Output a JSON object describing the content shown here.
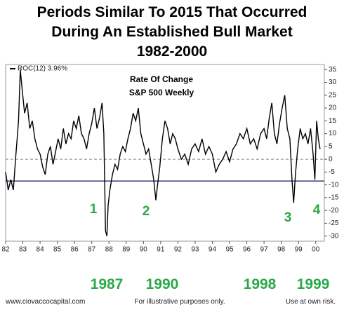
{
  "chart_data": {
    "type": "line",
    "title": [
      "Periods Similar To 2015 That Occurred",
      "During An Established Bull Market",
      "1982-2000"
    ],
    "box_text": [
      "Rate Of Change",
      "S&P 500 Weekly"
    ],
    "series": [
      {
        "name": "ROC(12) 3.96%",
        "color": "#000000",
        "x": [
          1982.0,
          1982.15,
          1982.3,
          1982.45,
          1982.6,
          1982.75,
          1982.85,
          1982.95,
          1983.1,
          1983.25,
          1983.4,
          1983.55,
          1983.7,
          1983.85,
          1984.0,
          1984.15,
          1984.3,
          1984.45,
          1984.6,
          1984.75,
          1984.9,
          1985.05,
          1985.2,
          1985.35,
          1985.5,
          1985.65,
          1985.8,
          1985.95,
          1986.1,
          1986.25,
          1986.4,
          1986.55,
          1986.7,
          1986.85,
          1987.0,
          1987.15,
          1987.3,
          1987.45,
          1987.6,
          1987.7,
          1987.8,
          1987.88,
          1987.95,
          1988.05,
          1988.2,
          1988.35,
          1988.5,
          1988.65,
          1988.8,
          1988.95,
          1989.1,
          1989.25,
          1989.4,
          1989.55,
          1989.7,
          1989.85,
          1990.0,
          1990.15,
          1990.3,
          1990.45,
          1990.6,
          1990.72,
          1990.82,
          1990.95,
          1991.1,
          1991.25,
          1991.4,
          1991.55,
          1991.7,
          1991.85,
          1992.0,
          1992.2,
          1992.4,
          1992.6,
          1992.8,
          1993.0,
          1993.2,
          1993.4,
          1993.6,
          1993.8,
          1994.0,
          1994.2,
          1994.4,
          1994.6,
          1994.8,
          1995.0,
          1995.2,
          1995.4,
          1995.6,
          1995.8,
          1996.0,
          1996.2,
          1996.4,
          1996.6,
          1996.8,
          1997.0,
          1997.15,
          1997.3,
          1997.45,
          1997.6,
          1997.75,
          1997.9,
          1998.05,
          1998.2,
          1998.35,
          1998.5,
          1998.62,
          1998.72,
          1998.82,
          1998.95,
          1999.1,
          1999.25,
          1999.4,
          1999.55,
          1999.7,
          1999.85,
          1999.95,
          2000.05,
          2000.15,
          2000.25
        ],
        "values": [
          -5,
          -12,
          -8,
          -12,
          2,
          15,
          35,
          28,
          18,
          22,
          12,
          15,
          8,
          4,
          2,
          -3,
          -6,
          2,
          5,
          -2,
          3,
          8,
          4,
          12,
          6,
          10,
          8,
          15,
          12,
          17,
          10,
          8,
          4,
          10,
          14,
          20,
          12,
          16,
          22,
          10,
          -28,
          -30,
          -18,
          -12,
          -6,
          -2,
          -4,
          2,
          5,
          3,
          8,
          12,
          18,
          15,
          20,
          10,
          6,
          2,
          4,
          -2,
          -8,
          -16,
          -10,
          -3,
          8,
          15,
          12,
          6,
          10,
          8,
          4,
          0,
          2,
          -2,
          4,
          6,
          3,
          8,
          2,
          5,
          2,
          -5,
          -2,
          0,
          3,
          -1,
          4,
          6,
          10,
          8,
          12,
          6,
          8,
          4,
          10,
          12,
          8,
          16,
          22,
          10,
          6,
          14,
          20,
          25,
          12,
          8,
          -8,
          -17,
          -6,
          4,
          12,
          8,
          10,
          6,
          12,
          2,
          -8,
          15,
          8,
          4
        ]
      }
    ],
    "xlim": [
      1982,
      2000.5
    ],
    "ylim": [
      -32,
      37
    ],
    "xticks": [
      {
        "value": 1982,
        "label": "82"
      },
      {
        "value": 1983,
        "label": "83"
      },
      {
        "value": 1984,
        "label": "84"
      },
      {
        "value": 1985,
        "label": "85"
      },
      {
        "value": 1986,
        "label": "86"
      },
      {
        "value": 1987,
        "label": "87"
      },
      {
        "value": 1988,
        "label": "88"
      },
      {
        "value": 1989,
        "label": "89"
      },
      {
        "value": 1990,
        "label": "90"
      },
      {
        "value": 1991,
        "label": "91"
      },
      {
        "value": 1992,
        "label": "92"
      },
      {
        "value": 1993,
        "label": "93"
      },
      {
        "value": 1994,
        "label": "94"
      },
      {
        "value": 1995,
        "label": "95"
      },
      {
        "value": 1996,
        "label": "96"
      },
      {
        "value": 1997,
        "label": "97"
      },
      {
        "value": 1998,
        "label": "98"
      },
      {
        "value": 1999,
        "label": "99"
      },
      {
        "value": 2000,
        "label": "00"
      }
    ],
    "yticks": [
      -30,
      -25,
      -20,
      -15,
      -10,
      -5,
      0,
      5,
      10,
      15,
      20,
      25,
      30,
      35
    ],
    "reference_line": -8.5,
    "reference_color": "#1a2a6c",
    "zero_line": true,
    "annotations": [
      "1",
      "2",
      "3",
      "4"
    ],
    "period_labels": [
      "1987",
      "1990",
      "1998",
      "1999"
    ],
    "footer": [
      "www.ciovaccocapital.com",
      "For illustrative purposes only.",
      "Use at own risk."
    ]
  }
}
